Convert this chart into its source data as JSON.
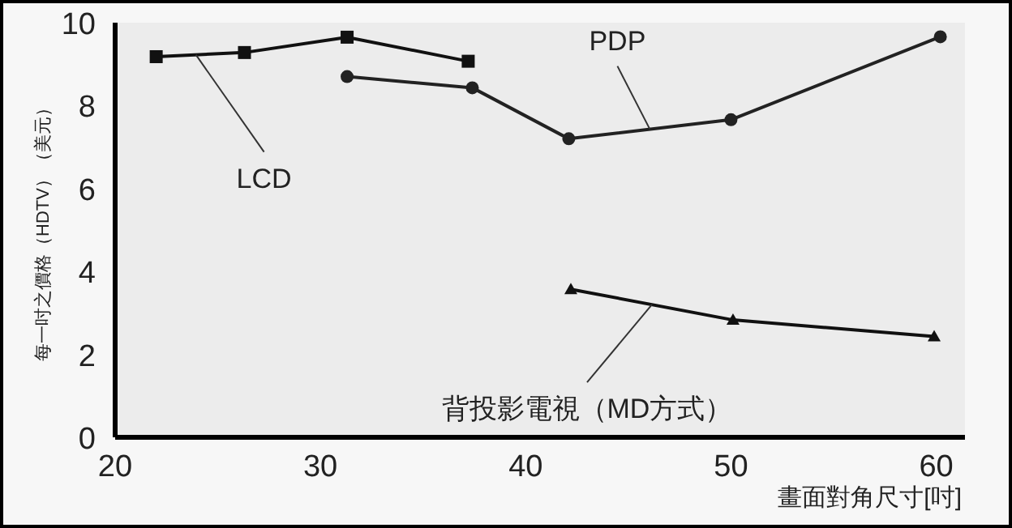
{
  "chart_data": {
    "type": "line",
    "xlabel": "畫面對角尺寸[吋]",
    "ylabel": "每一吋之價格（HDTV）（美元）",
    "xlim": [
      20,
      61.4
    ],
    "xticks": [
      20,
      30,
      40,
      50,
      60
    ],
    "ylim": [
      0,
      10
    ],
    "yticks": [
      0,
      2,
      4,
      6,
      8,
      10
    ],
    "grid": false,
    "series": [
      {
        "name": "LCD",
        "color": "#111111",
        "marker": "square",
        "x": [
          22.0,
          26.3,
          31.3,
          37.2
        ],
        "values": [
          9.18,
          9.28,
          9.65,
          9.07
        ]
      },
      {
        "name": "PDP",
        "color": "#222222",
        "marker": "circle",
        "x": [
          31.3,
          37.4,
          42.1,
          50.0,
          60.2
        ],
        "values": [
          8.7,
          8.43,
          7.2,
          7.66,
          9.66
        ]
      },
      {
        "name": "背投影電視（MD方式）",
        "color": "#111111",
        "marker": "triangle",
        "x": [
          42.2,
          50.1,
          59.9
        ],
        "values": [
          3.57,
          2.83,
          2.43
        ]
      }
    ]
  }
}
